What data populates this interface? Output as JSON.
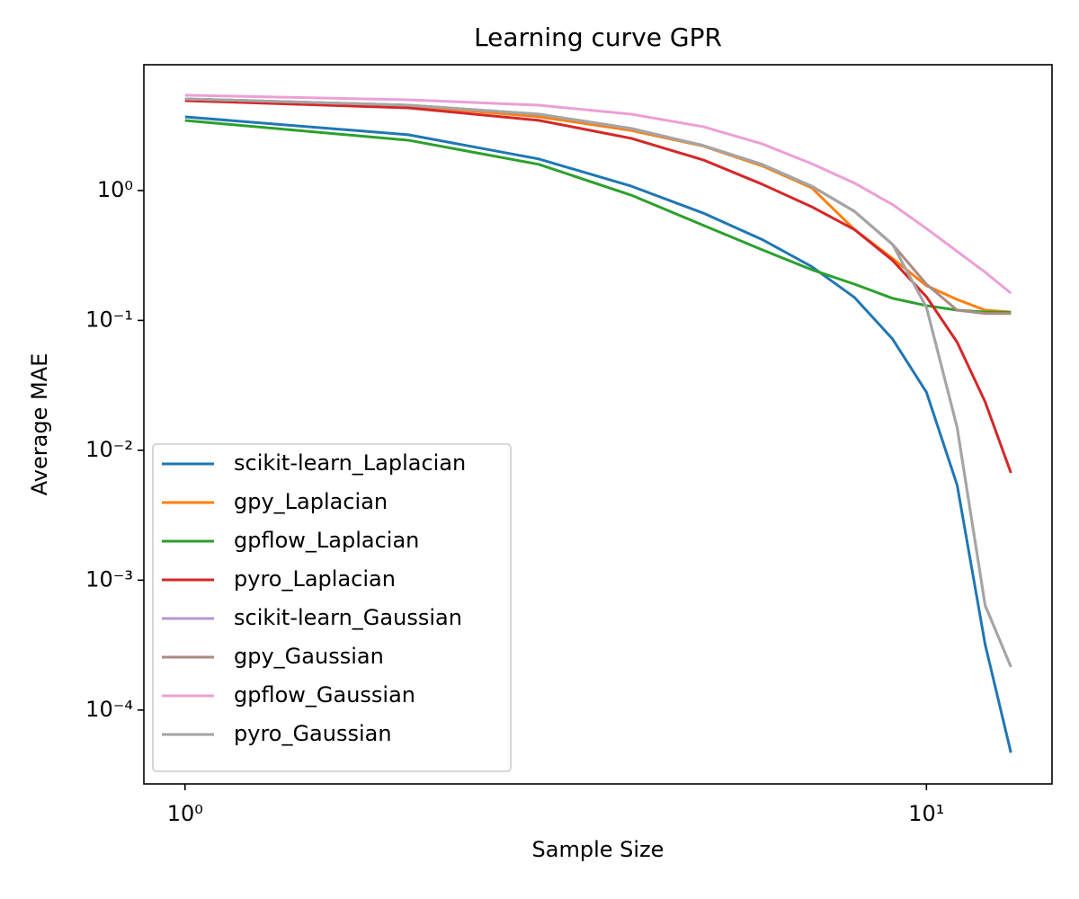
{
  "chart_data": {
    "type": "line",
    "title": "Learning curve GPR",
    "xlabel": "Sample Size",
    "ylabel": "Average MAE",
    "xscale": "log",
    "yscale": "log",
    "legend": "lower left",
    "x": [
      1,
      2,
      3,
      4,
      5,
      6,
      7,
      8,
      9,
      10,
      11,
      12,
      13
    ],
    "xlim": [
      0.88,
      14.77
    ],
    "ylim": [
      2.7e-05,
      9.3
    ],
    "xticks": [
      {
        "value": 1,
        "label": "10⁰"
      },
      {
        "value": 10,
        "label": "10¹"
      }
    ],
    "yticks": [
      {
        "value": 0.0001,
        "label": "10⁻⁴"
      },
      {
        "value": 0.001,
        "label": "10⁻³"
      },
      {
        "value": 0.01,
        "label": "10⁻²"
      },
      {
        "value": 0.1,
        "label": "10⁻¹"
      },
      {
        "value": 1,
        "label": "10⁰"
      }
    ],
    "series": [
      {
        "name": "scikit-learn_Laplacian",
        "color": "#1f77b4",
        "values": [
          3.69,
          2.69,
          1.75,
          1.08,
          0.67,
          0.42,
          0.26,
          0.15,
          0.072,
          0.028,
          0.0054,
          0.00032,
          4.7e-05
        ]
      },
      {
        "name": "gpy_Laplacian",
        "color": "#ff7f0e",
        "values": [
          5.0,
          4.5,
          3.7,
          2.9,
          2.2,
          1.55,
          1.05,
          0.5,
          0.3,
          0.185,
          0.145,
          0.12,
          0.116
        ]
      },
      {
        "name": "gpflow_Laplacian",
        "color": "#2ca02c",
        "values": [
          3.46,
          2.44,
          1.59,
          0.92,
          0.54,
          0.35,
          0.246,
          0.19,
          0.148,
          0.13,
          0.12,
          0.116,
          0.115
        ]
      },
      {
        "name": "pyro_Laplacian",
        "color": "#d62728",
        "values": [
          4.92,
          4.33,
          3.47,
          2.52,
          1.72,
          1.12,
          0.75,
          0.5,
          0.29,
          0.152,
          0.068,
          0.0236,
          0.0067
        ]
      },
      {
        "name": "scikit-learn_Gaussian",
        "color": "#b597d1",
        "values": [
          5.08,
          4.54,
          3.87,
          3.0,
          2.22,
          1.59,
          1.08,
          0.69,
          0.385,
          0.126,
          0.015,
          0.00064,
          0.000215
        ]
      },
      {
        "name": "gpy_Gaussian",
        "color": "#ac8a83",
        "values": [
          5.08,
          4.54,
          3.87,
          3.0,
          2.22,
          1.59,
          1.08,
          0.69,
          0.385,
          0.19,
          0.12,
          0.113,
          0.113
        ]
      },
      {
        "name": "gpflow_Gaussian",
        "color": "#eba0d6",
        "values": [
          5.42,
          5.0,
          4.54,
          3.87,
          3.1,
          2.29,
          1.61,
          1.14,
          0.78,
          0.51,
          0.34,
          0.235,
          0.162
        ]
      },
      {
        "name": "pyro_Gaussian",
        "color": "#a5a5a5",
        "values": [
          5.08,
          4.54,
          3.87,
          3.0,
          2.22,
          1.59,
          1.08,
          0.69,
          0.385,
          0.126,
          0.015,
          0.00064,
          0.000215
        ]
      }
    ]
  }
}
